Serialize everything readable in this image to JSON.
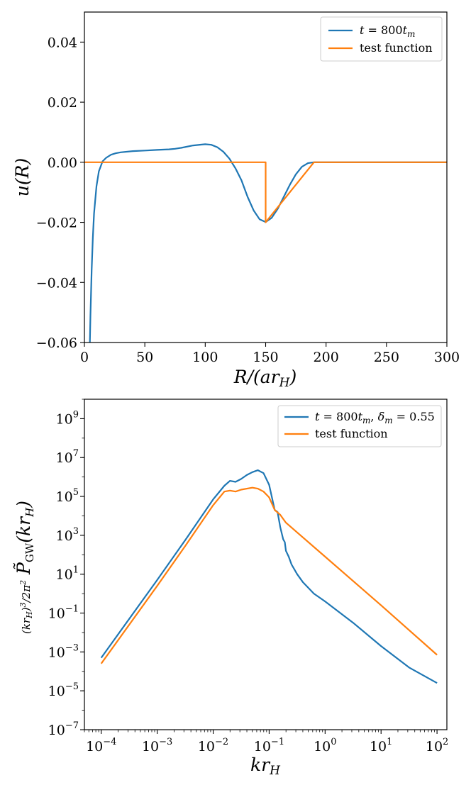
{
  "chart_data": [
    {
      "type": "line",
      "xlabel": "R/(ar_H)",
      "ylabel": "u(R)",
      "xlim": [
        0,
        300
      ],
      "ylim": [
        -0.06,
        0.05
      ],
      "xticks": [
        0,
        50,
        100,
        150,
        200,
        250,
        300
      ],
      "xtick_labels": [
        "0",
        "50",
        "100",
        "150",
        "200",
        "250",
        "300"
      ],
      "yticks": [
        -0.06,
        -0.04,
        -0.02,
        0.0,
        0.02,
        0.04
      ],
      "ytick_labels": [
        "−0.06",
        "−0.04",
        "−0.02",
        "0.00",
        "0.02",
        "0.04"
      ],
      "legend_position": "top-right",
      "series": [
        {
          "name": "t = 800t_m",
          "color": "#1f77b4",
          "x": [
            4.5,
            5,
            6,
            7,
            8,
            10,
            12,
            15,
            18,
            22,
            26,
            30,
            40,
            50,
            60,
            70,
            75,
            80,
            90,
            100,
            105,
            110,
            115,
            120,
            125,
            130,
            135,
            140,
            145,
            150,
            155,
            160,
            165,
            170,
            175,
            180,
            185,
            190,
            200,
            250,
            300
          ],
          "y": [
            -0.06,
            -0.051,
            -0.036,
            -0.025,
            -0.017,
            -0.008,
            -0.003,
            0.0003,
            0.0015,
            0.0025,
            0.003,
            0.0033,
            0.0037,
            0.0039,
            0.0041,
            0.0043,
            0.0045,
            0.0048,
            0.0056,
            0.006,
            0.0058,
            0.005,
            0.0035,
            0.0012,
            -0.002,
            -0.006,
            -0.0115,
            -0.016,
            -0.019,
            -0.0199,
            -0.0185,
            -0.0155,
            -0.0115,
            -0.0075,
            -0.004,
            -0.0015,
            -0.0003,
            0.0,
            0.0,
            0.0,
            0.0
          ]
        },
        {
          "name": "test function",
          "color": "#ff7f0e",
          "x": [
            0,
            150,
            150,
            190,
            300
          ],
          "y": [
            0.0,
            0.0,
            -0.02,
            0.0,
            0.0
          ]
        }
      ]
    },
    {
      "type": "line",
      "xlabel": "kr_H",
      "ylabel": "(kr_H)^3/(2π^2) P̃_GW(kr_H)",
      "xscale": "log",
      "yscale": "log",
      "xlim": [
        5e-05,
        150
      ],
      "ylim": [
        1e-07,
        10000000000.0
      ],
      "xticks": [
        0.0001,
        0.001,
        0.01,
        0.1,
        1,
        10,
        100
      ],
      "xtick_bases": [
        "10",
        "10",
        "10",
        "10",
        "10",
        "10",
        "10"
      ],
      "xtick_exps": [
        "−4",
        "−3",
        "−2",
        "−1",
        "0",
        "1",
        "2"
      ],
      "yticks": [
        1e-07,
        1e-05,
        0.001,
        0.1,
        10.0,
        1000.0,
        100000.0,
        10000000.0,
        1000000000.0
      ],
      "ytick_bases": [
        "10",
        "10",
        "10",
        "10",
        "10",
        "10",
        "10",
        "10",
        "10"
      ],
      "ytick_exps": [
        "−7",
        "−5",
        "−3",
        "−1",
        "1",
        "3",
        "5",
        "7",
        "9"
      ],
      "legend_position": "top-right",
      "series": [
        {
          "name": "t = 800t_m, δ_m = 0.55",
          "color": "#1f77b4",
          "logx": [
            -4,
            -3,
            -2.5,
            -2,
            -1.8,
            -1.7,
            -1.6,
            -1.5,
            -1.4,
            -1.3,
            -1.2,
            -1.1,
            -1.0,
            -0.9,
            -0.85,
            -0.8,
            -0.75,
            -0.72,
            -0.7,
            -0.65,
            -0.6,
            -0.5,
            -0.4,
            -0.2,
            0,
            0.5,
            1,
            1.5,
            2
          ],
          "logy": [
            -3.3,
            0.7,
            2.75,
            4.85,
            5.55,
            5.8,
            5.75,
            5.9,
            6.1,
            6.25,
            6.35,
            6.2,
            5.6,
            4.3,
            4.2,
            3.4,
            2.8,
            2.65,
            2.2,
            1.9,
            1.5,
            1.0,
            0.6,
            0.0,
            -0.4,
            -1.5,
            -2.7,
            -3.8,
            -4.6
          ]
        },
        {
          "name": "test function",
          "color": "#ff7f0e",
          "logx": [
            -4,
            -3,
            -2.5,
            -2,
            -1.8,
            -1.7,
            -1.6,
            -1.5,
            -1.3,
            -1.2,
            -1.1,
            -1.0,
            -0.9,
            -0.8,
            -0.7,
            -0.5,
            0,
            1,
            2
          ],
          "logy": [
            -3.6,
            0.4,
            2.45,
            4.55,
            5.25,
            5.3,
            5.25,
            5.35,
            5.45,
            5.4,
            5.25,
            4.95,
            4.3,
            4.05,
            3.65,
            3.15,
            1.9,
            -0.6,
            -3.15
          ]
        }
      ]
    }
  ]
}
